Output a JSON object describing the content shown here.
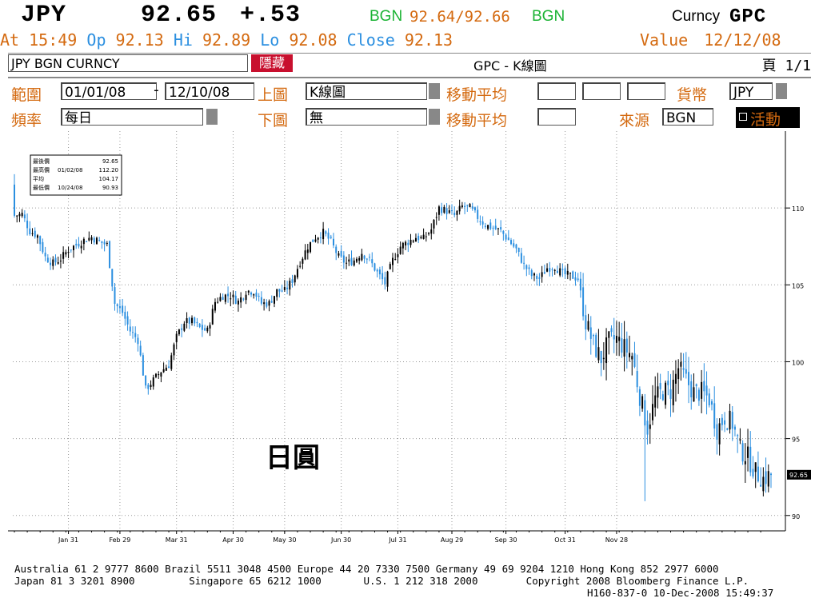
{
  "header": {
    "ticker": "JPY",
    "price": "92.65",
    "change": "+.53",
    "source_tag": "BGN",
    "bid_ask": "92.64/92.66",
    "source_tag2": "BGN",
    "function_prefix": "Curncy",
    "function_code": "GPC",
    "at_label": "At",
    "at_value": "15:49",
    "op_label": "Op",
    "op_value": "92.13",
    "hi_label": "Hi",
    "hi_value": "92.89",
    "lo_label": "Lo",
    "lo_value": "92.08",
    "close_label": "Close",
    "close_value": "92.13",
    "value_label": "Value",
    "value_date": "12/12/08",
    "security": "JPY BGN CURNCY",
    "hide_button": "隱藏",
    "chart_name": "GPC - K線圖",
    "page_label": "頁 1/1"
  },
  "controls": {
    "range_label": "範圍",
    "range_start": "01/01/08",
    "range_sep": "-",
    "range_end": "12/10/08",
    "upper_label": "上圖",
    "upper_value": "K線圖",
    "ma_label1": "移動平均",
    "currency_label": "貨幣",
    "currency_value": "JPY",
    "freq_label": "頻率",
    "freq_value": "每日",
    "lower_label": "下圖",
    "lower_value": "無",
    "ma_label2": "移動平均",
    "source_label": "來源",
    "source_value": "BGN",
    "active_button": "活動",
    "accent_orange": "#d46a10",
    "accent_blue": "#2b8fe0"
  },
  "chart_data": {
    "type": "candlestick",
    "title": "",
    "annotation": "日圓",
    "ylim": [
      89,
      115
    ],
    "yticks": [
      90,
      95,
      100,
      105,
      110
    ],
    "xticks": [
      "Jan 31",
      "Feb 29",
      "Mar 31",
      "Apr 30",
      "May 30",
      "Jun 30",
      "Jul 31",
      "Aug 29",
      "Sep 30",
      "Oct 31",
      "Nov 28"
    ],
    "last_value_label": "92.65",
    "grid": true,
    "y_axis_side": "right",
    "legend": {
      "labels": [
        "最後價",
        "最高價",
        "平均",
        "最低價"
      ],
      "dates": [
        "",
        "01/02/08",
        "",
        "10/24/08"
      ],
      "values": [
        "92.65",
        "112.20",
        "104.17",
        "90.93"
      ]
    },
    "up_color": "#000000",
    "down_color": "#2b8fe0",
    "anchor_closes": [
      [
        0,
        109.5
      ],
      [
        3,
        109.6
      ],
      [
        6,
        108.5
      ],
      [
        9,
        108.2
      ],
      [
        12,
        106.8
      ],
      [
        15,
        106.4
      ],
      [
        18,
        106.7
      ],
      [
        21,
        107.3
      ],
      [
        24,
        107.6
      ],
      [
        27,
        107.9
      ],
      [
        30,
        108.1
      ],
      [
        33,
        107.8
      ],
      [
        36,
        107.6
      ],
      [
        39,
        103.8
      ],
      [
        42,
        103.2
      ],
      [
        45,
        102.0
      ],
      [
        48,
        101.4
      ],
      [
        51,
        98.2
      ],
      [
        54,
        98.8
      ],
      [
        57,
        99.4
      ],
      [
        60,
        99.8
      ],
      [
        63,
        101.6
      ],
      [
        66,
        102.6
      ],
      [
        69,
        102.6
      ],
      [
        72,
        102.2
      ],
      [
        75,
        102.0
      ],
      [
        78,
        103.9
      ],
      [
        81,
        104.3
      ],
      [
        84,
        104.3
      ],
      [
        87,
        103.9
      ],
      [
        90,
        104.6
      ],
      [
        93,
        104.6
      ],
      [
        96,
        103.8
      ],
      [
        99,
        103.8
      ],
      [
        102,
        104.6
      ],
      [
        105,
        104.6
      ],
      [
        108,
        105.3
      ],
      [
        111,
        106.5
      ],
      [
        114,
        107.5
      ],
      [
        117,
        108.1
      ],
      [
        120,
        108.4
      ],
      [
        123,
        107.8
      ],
      [
        126,
        106.8
      ],
      [
        129,
        106.4
      ],
      [
        132,
        106.6
      ],
      [
        135,
        107.1
      ],
      [
        138,
        106.6
      ],
      [
        141,
        105.8
      ],
      [
        144,
        105.1
      ],
      [
        147,
        106.6
      ],
      [
        150,
        107.5
      ],
      [
        153,
        107.8
      ],
      [
        156,
        108.1
      ],
      [
        159,
        108.0
      ],
      [
        162,
        108.6
      ],
      [
        165,
        110.0
      ],
      [
        168,
        109.8
      ],
      [
        171,
        109.5
      ],
      [
        174,
        110.1
      ],
      [
        177,
        110.0
      ],
      [
        180,
        109.4
      ],
      [
        183,
        108.9
      ],
      [
        186,
        108.7
      ],
      [
        189,
        108.5
      ],
      [
        192,
        107.9
      ],
      [
        195,
        107.3
      ],
      [
        198,
        106.3
      ],
      [
        201,
        105.6
      ],
      [
        204,
        105.4
      ],
      [
        207,
        106.1
      ],
      [
        210,
        106.2
      ],
      [
        213,
        105.7
      ],
      [
        216,
        105.6
      ],
      [
        219,
        105.4
      ],
      [
        222,
        102.6
      ],
      [
        225,
        101.1
      ],
      [
        228,
        100.2
      ],
      [
        231,
        101.3
      ],
      [
        234,
        101.5
      ],
      [
        237,
        100.9
      ],
      [
        240,
        100.4
      ],
      [
        243,
        97.8
      ],
      [
        246,
        95.7
      ],
      [
        249,
        97.6
      ],
      [
        252,
        98.1
      ],
      [
        255,
        98.1
      ],
      [
        258,
        99.6
      ],
      [
        261,
        98.8
      ],
      [
        264,
        98.0
      ],
      [
        267,
        98.0
      ],
      [
        270,
        97.6
      ],
      [
        273,
        95.6
      ],
      [
        276,
        96.4
      ],
      [
        279,
        96.0
      ],
      [
        282,
        94.3
      ],
      [
        285,
        93.8
      ],
      [
        288,
        92.8
      ],
      [
        291,
        92.4
      ],
      [
        294,
        92.65
      ]
    ]
  },
  "footer": {
    "line1": "Australia 61 2 9777 8600 Brazil 5511 3048 4500 Europe 44 20 7330 7500 Germany 49 69 9204 1210 Hong Kong 852 2977 6000",
    "line2": "Japan 81 3 3201 8900         Singapore 65 6212 1000       U.S. 1 212 318 2000        Copyright 2008 Bloomberg Finance L.P.",
    "line3": "H160-837-0 10-Dec-2008 15:49:37"
  }
}
